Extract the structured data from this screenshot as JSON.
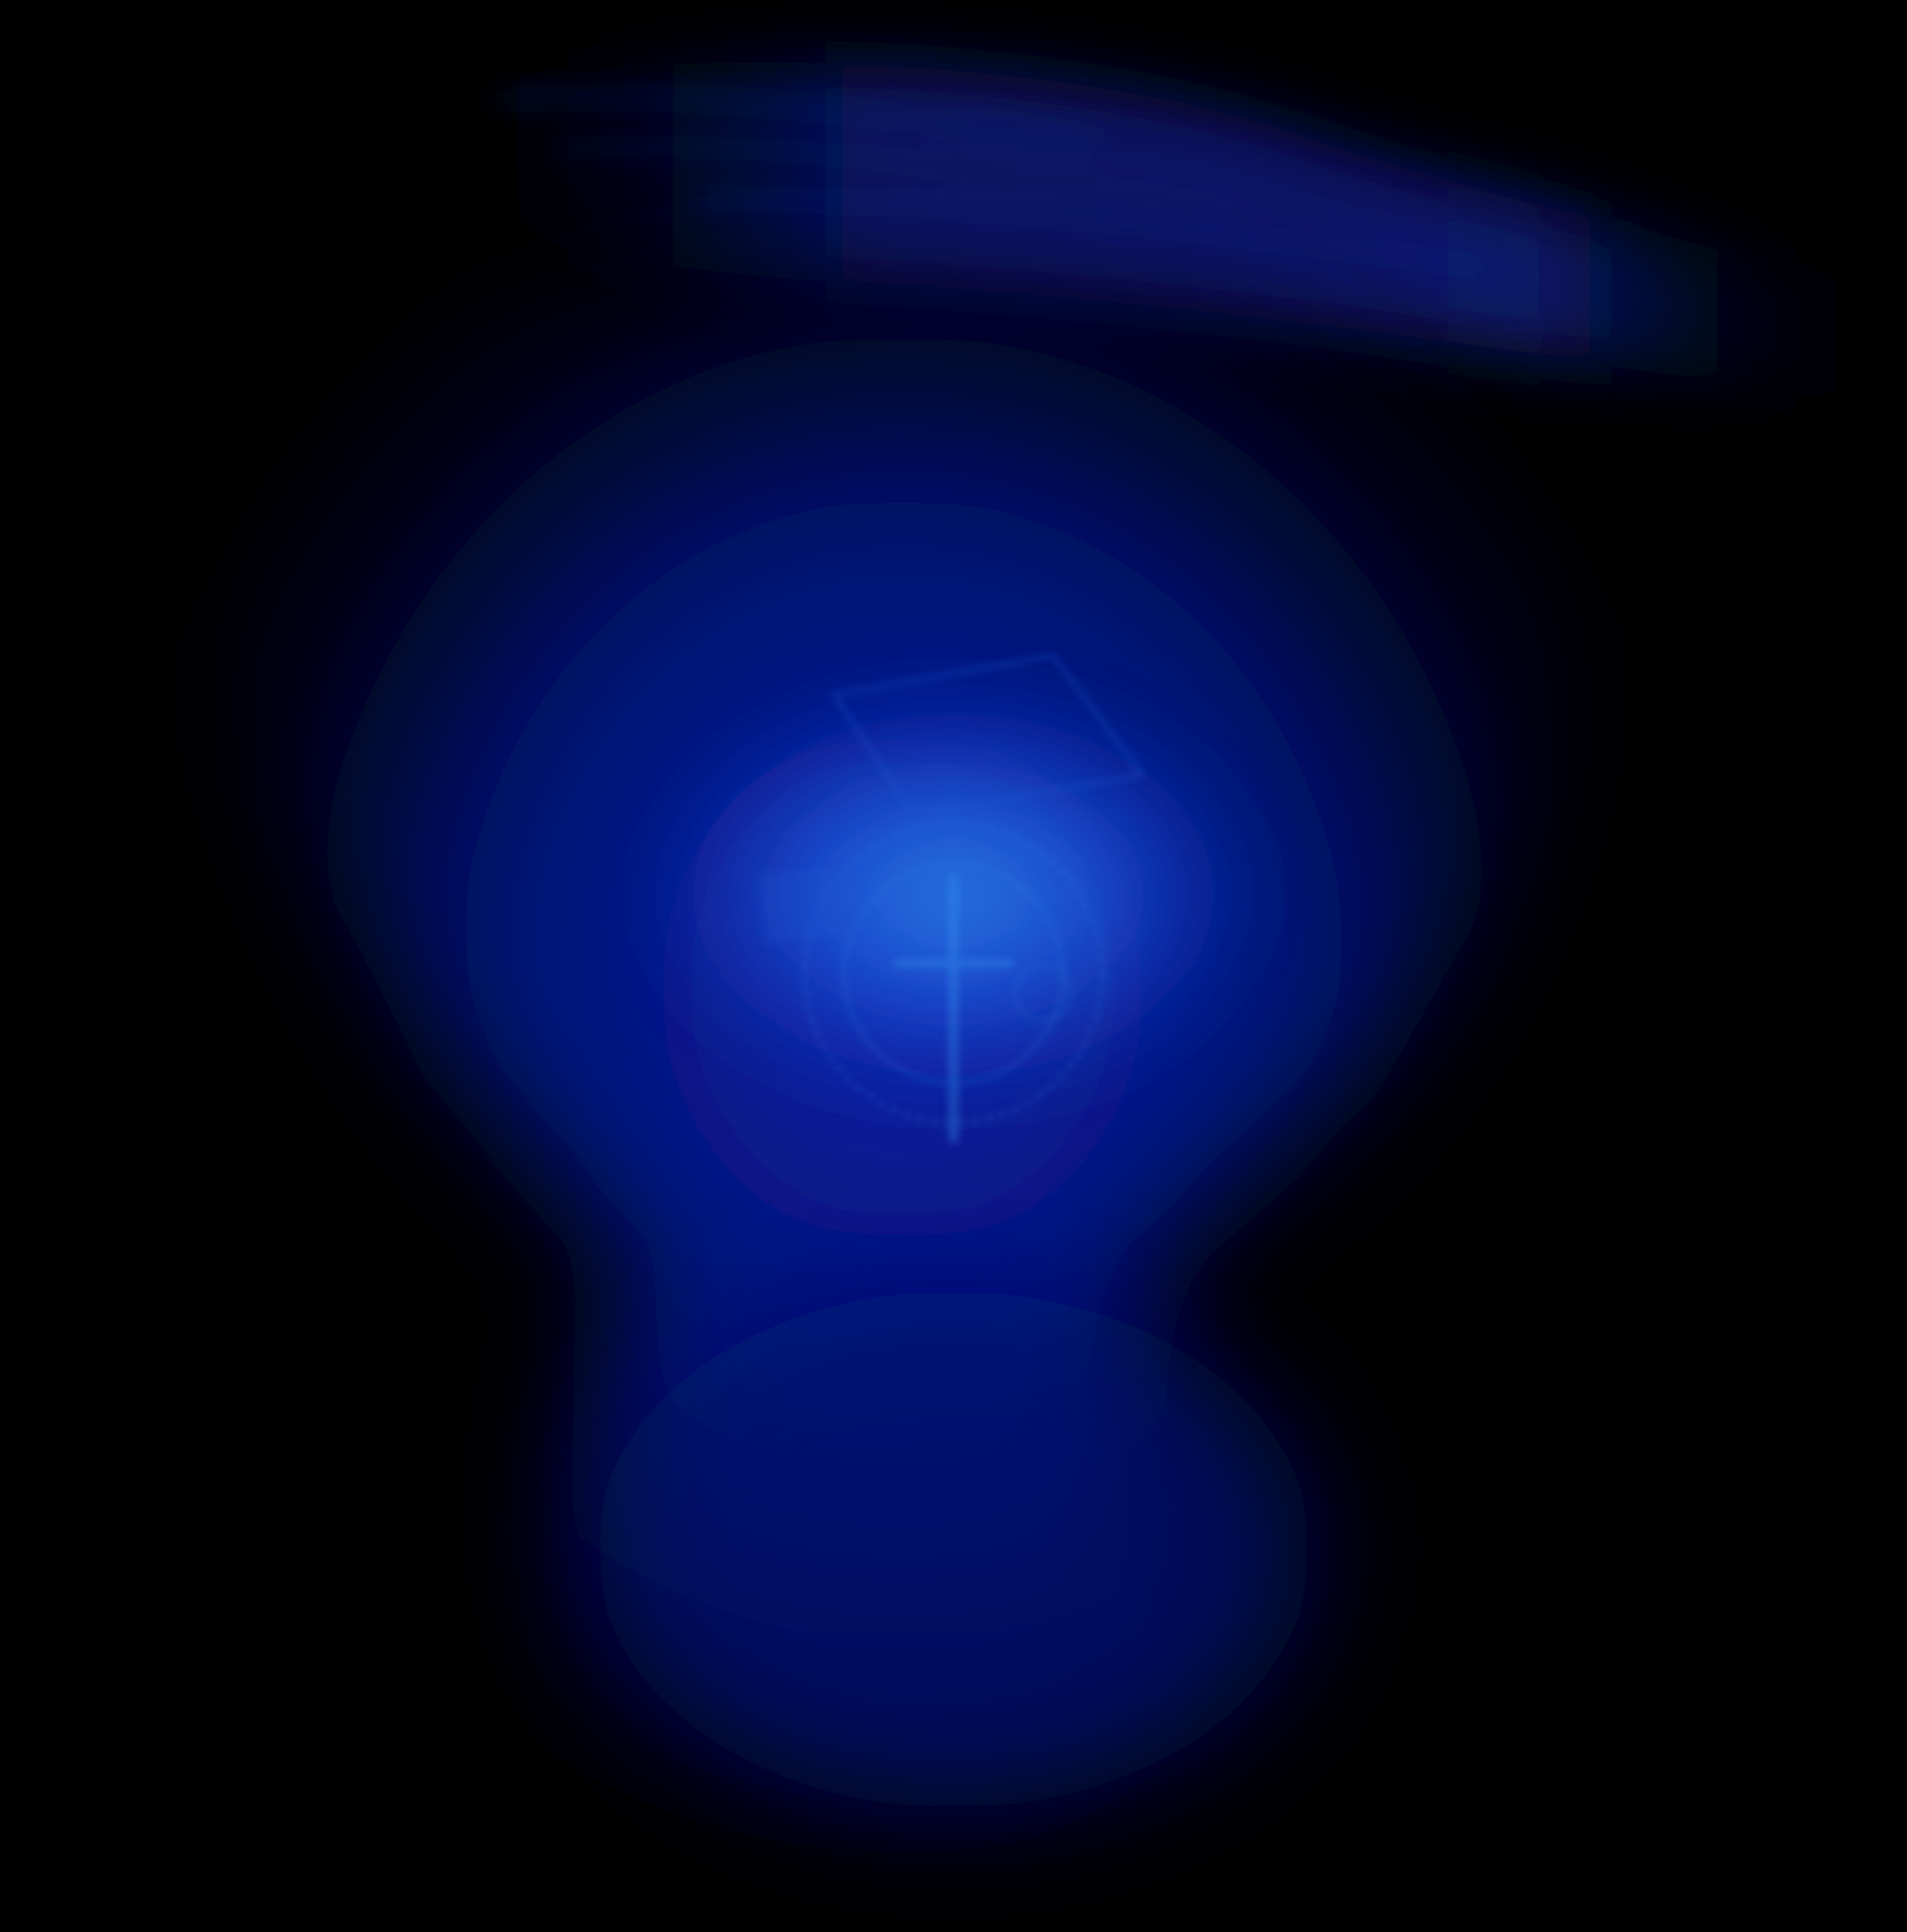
{
  "image": {
    "subject": "blue-glowing-vase-shaped-object",
    "colors": {
      "background": "#000000",
      "deep_blue": "#000a4a",
      "mid_blue": "#001a9a",
      "bright_blue": "#1a4de0",
      "core_glow": "#2a8ae8",
      "ripple": "#0a1a6e"
    }
  }
}
